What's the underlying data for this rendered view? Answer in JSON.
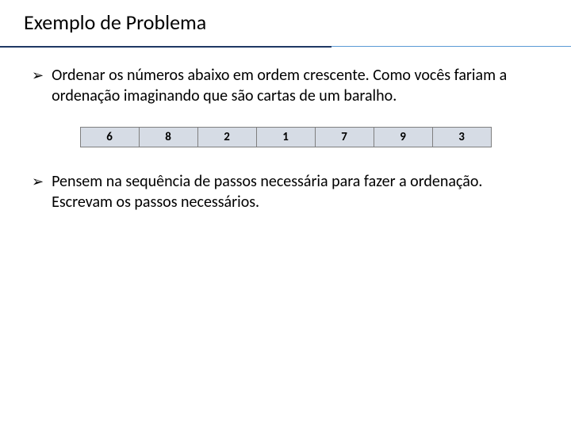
{
  "title": "Exemplo de Problema",
  "underline": {
    "left_color": "#1f3864",
    "right_color": "#5b9bd5"
  },
  "bullets": [
    "Ordenar os números abaixo em ordem crescente. Como vocês fariam a ordenação imaginando que são cartas de um baralho.",
    "Pensem na sequência de passos necessária para fazer a ordenação. Escrevam os passos necessários."
  ],
  "bullet_marker": "➢",
  "cells": {
    "values": [
      "6",
      "8",
      "2",
      "1",
      "7",
      "9",
      "3"
    ],
    "background_color": "#d6dce5",
    "border_color": "#7f7f7f",
    "text_color": "#000000"
  }
}
